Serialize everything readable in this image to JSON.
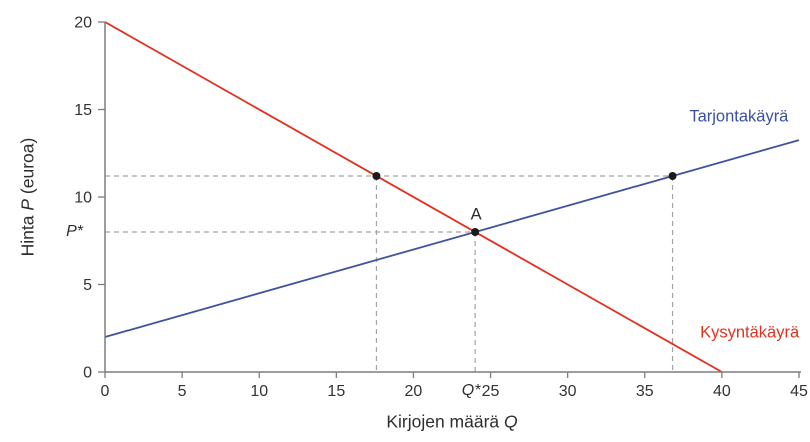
{
  "chart_data": {
    "type": "line",
    "title": "",
    "xlabel": "Kirjojen määrä Q",
    "ylabel": "Hinta P (euroa)",
    "axis_labels": {
      "y": {
        "pre": "Hinta ",
        "var": "P",
        "post": " (euroa)"
      },
      "x": {
        "pre": "Kirjojen määrä ",
        "var": "Q",
        "post": ""
      }
    },
    "xlim": [
      0,
      45
    ],
    "ylim": [
      0,
      20
    ],
    "xticks": [
      0,
      5,
      10,
      15,
      20,
      25,
      30,
      35,
      40,
      45
    ],
    "yticks": [
      0,
      5,
      10,
      15,
      20
    ],
    "grid": false,
    "legend_position": "inline-curve-labels",
    "series": [
      {
        "name": "Kysyntäkäyrä",
        "role": "demand",
        "color": "#e2301f",
        "points": [
          [
            0,
            20
          ],
          [
            40,
            0
          ]
        ],
        "label_at": [
          41.8,
          2.25
        ]
      },
      {
        "name": "Tarjontakäyrä",
        "role": "supply",
        "color": "#4252a0",
        "points": [
          [
            0,
            2
          ],
          [
            45,
            13.25
          ]
        ],
        "label_at": [
          41.1,
          14.6
        ]
      }
    ],
    "equilibrium": {
      "label": "A",
      "q": 24,
      "p": 8,
      "p_axis_label": "P*",
      "q_axis_label": "Q*"
    },
    "reference_line": {
      "p": 11.2,
      "demand_q": 17.6,
      "supply_q": 36.8
    },
    "marked_points": [
      [
        17.6,
        11.2
      ],
      [
        24,
        8
      ],
      [
        36.8,
        11.2
      ]
    ],
    "colors": {
      "axis": "#7d7d7d",
      "tick_text": "#333333",
      "dashed_guide": "#a3a3a3",
      "point": "#1b1b1b",
      "demand": "#e2301f",
      "supply": "#4252a0",
      "supply_label": "#3a4fa3",
      "demand_label": "#e0321f"
    }
  }
}
